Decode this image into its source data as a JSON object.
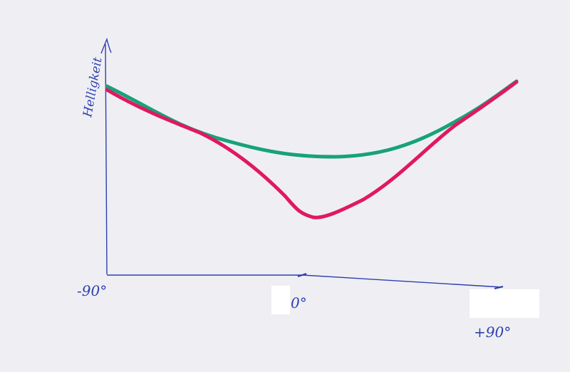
{
  "diagram": {
    "y_axis_label": "Helligkeit",
    "x_ticks": [
      "-90°",
      "0°",
      "+90°"
    ],
    "colors": {
      "axis": "#2f3fb0",
      "green_curve": "#17a27a",
      "red_curve": "#e0195f",
      "paper": "#efeff3"
    },
    "curves": [
      {
        "color": "green",
        "shape": "shallow U, minimum at 0°"
      },
      {
        "color": "red",
        "shape": "V-shaped dip, sharp minimum near 0°"
      }
    ]
  }
}
